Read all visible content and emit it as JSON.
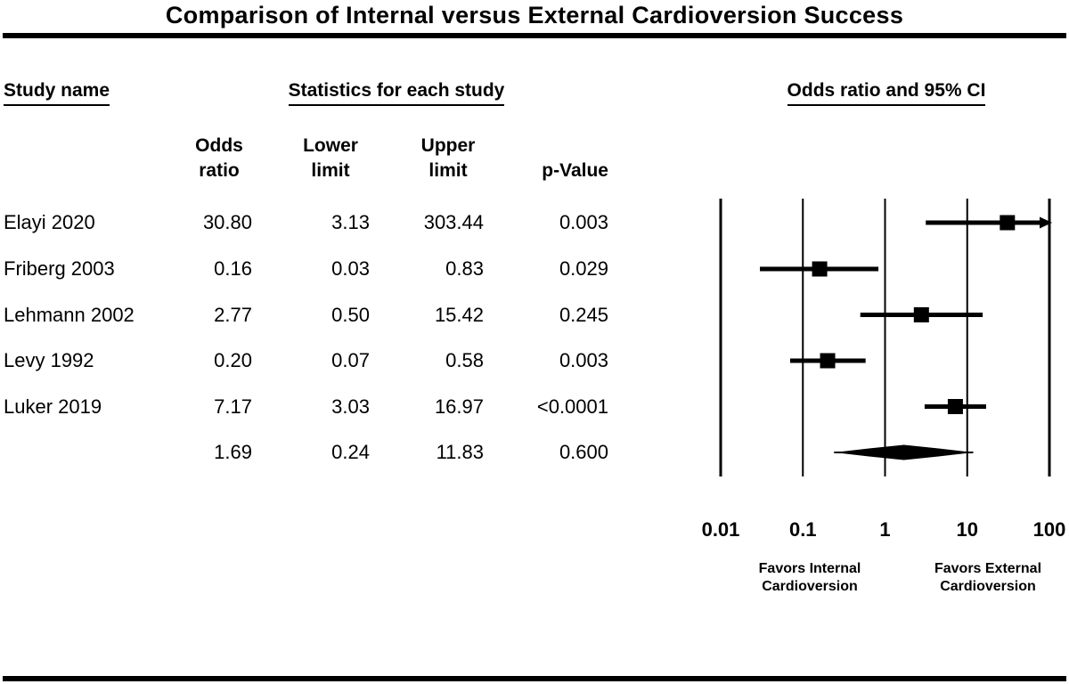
{
  "title": "Comparison of Internal versus External Cardioversion Success",
  "section_headers": {
    "study": "Study name",
    "statistics": "Statistics for each study",
    "plot": "Odds ratio and 95% CI"
  },
  "table": {
    "column_headers": {
      "odds": [
        "Odds",
        "ratio"
      ],
      "lower": [
        "Lower",
        "limit"
      ],
      "upper": [
        "Upper",
        "limit"
      ],
      "pvalue": "p-Value"
    }
  },
  "chart_data": {
    "type": "forest",
    "x_scale": "log10",
    "x_ticks": [
      0.01,
      0.1,
      1,
      10,
      100
    ],
    "x_tick_labels": [
      "0.01",
      "0.1",
      "1",
      "10",
      "100"
    ],
    "x_range": [
      0.01,
      100
    ],
    "arrow_clip_max": 100,
    "studies": [
      {
        "name": "Elayi 2020",
        "odds_ratio": 30.8,
        "lower": 3.13,
        "upper": 303.44,
        "p_value": "0.003"
      },
      {
        "name": "Friberg 2003",
        "odds_ratio": 0.16,
        "lower": 0.03,
        "upper": 0.83,
        "p_value": "0.029"
      },
      {
        "name": "Lehmann 2002",
        "odds_ratio": 2.77,
        "lower": 0.5,
        "upper": 15.42,
        "p_value": "0.245"
      },
      {
        "name": "Levy 1992",
        "odds_ratio": 0.2,
        "lower": 0.07,
        "upper": 0.58,
        "p_value": "0.003"
      },
      {
        "name": "Luker 2019",
        "odds_ratio": 7.17,
        "lower": 3.03,
        "upper": 16.97,
        "p_value": "<0.0001"
      }
    ],
    "overall": {
      "name": "",
      "odds_ratio": 1.69,
      "lower": 0.24,
      "upper": 11.83,
      "p_value": "0.600"
    },
    "x_axis_footnotes": {
      "left": [
        "Favors Internal",
        "Cardioversion"
      ],
      "right": [
        "Favors External",
        "Cardioversion"
      ]
    }
  },
  "colors": {
    "foreground": "#000000",
    "background": "#ffffff"
  }
}
